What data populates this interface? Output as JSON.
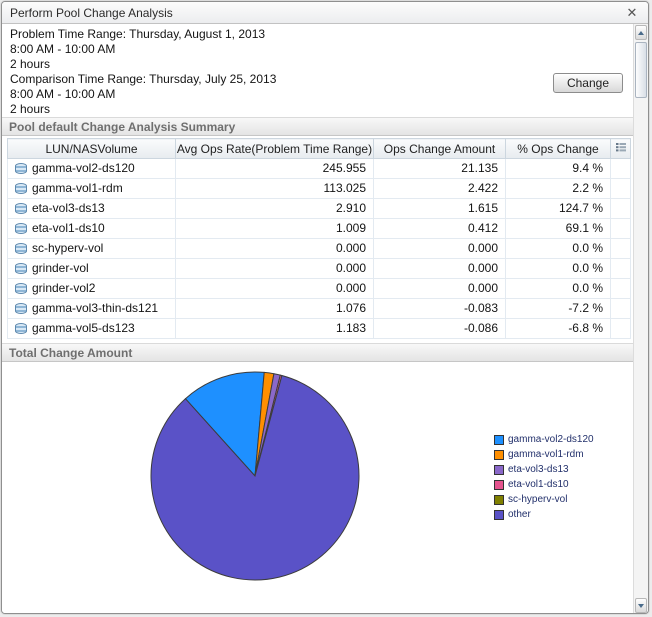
{
  "window": {
    "title": "Perform Pool Change Analysis",
    "close_label": "✕"
  },
  "info": {
    "problem_label": "Problem Time Range: Thursday, August 1, 2013",
    "problem_time": "8:00 AM - 10:00 AM",
    "problem_duration": "2 hours",
    "comparison_label": "Comparison Time Range: Thursday, July 25, 2013",
    "comparison_time": "8:00 AM - 10:00 AM",
    "comparison_duration": "2 hours",
    "change_button": "Change"
  },
  "summary": {
    "title": "Pool default Change Analysis Summary",
    "columns": [
      "LUN/NASVolume",
      "Avg Ops Rate(Problem Time Range)",
      "Ops Change Amount",
      "% Ops Change"
    ],
    "rows": [
      {
        "name": "gamma-vol2-ds120",
        "avg": "245.955",
        "change": "21.135",
        "pct": "9.4 %"
      },
      {
        "name": "gamma-vol1-rdm",
        "avg": "113.025",
        "change": "2.422",
        "pct": "2.2 %"
      },
      {
        "name": "eta-vol3-ds13",
        "avg": "2.910",
        "change": "1.615",
        "pct": "124.7 %"
      },
      {
        "name": "eta-vol1-ds10",
        "avg": "1.009",
        "change": "0.412",
        "pct": "69.1 %"
      },
      {
        "name": "sc-hyperv-vol",
        "avg": "0.000",
        "change": "0.000",
        "pct": "0.0 %"
      },
      {
        "name": "grinder-vol",
        "avg": "0.000",
        "change": "0.000",
        "pct": "0.0 %"
      },
      {
        "name": "grinder-vol2",
        "avg": "0.000",
        "change": "0.000",
        "pct": "0.0 %"
      },
      {
        "name": "gamma-vol3-thin-ds121",
        "avg": "1.076",
        "change": "-0.083",
        "pct": "-7.2 %"
      },
      {
        "name": "gamma-vol5-ds123",
        "avg": "1.183",
        "change": "-0.086",
        "pct": "-6.8 %"
      }
    ]
  },
  "chart_section": {
    "title": "Total Change Amount"
  },
  "chart_data": {
    "type": "pie",
    "title": "Total Change Amount",
    "legend_position": "right",
    "start_angle_deg": -42,
    "slices": [
      {
        "label": "gamma-vol2-ds120",
        "value": 21.135,
        "color": "#1e90ff"
      },
      {
        "label": "gamma-vol1-rdm",
        "value": 2.422,
        "color": "#ff8f00"
      },
      {
        "label": "eta-vol3-ds13",
        "value": 1.615,
        "color": "#8a68c9"
      },
      {
        "label": "eta-vol1-ds10",
        "value": 0.412,
        "color": "#e5548f"
      },
      {
        "label": "sc-hyperv-vol",
        "value": 0.0,
        "color": "#808000"
      },
      {
        "label": "other",
        "value": 136.0,
        "color": "#5a52c7"
      }
    ]
  }
}
